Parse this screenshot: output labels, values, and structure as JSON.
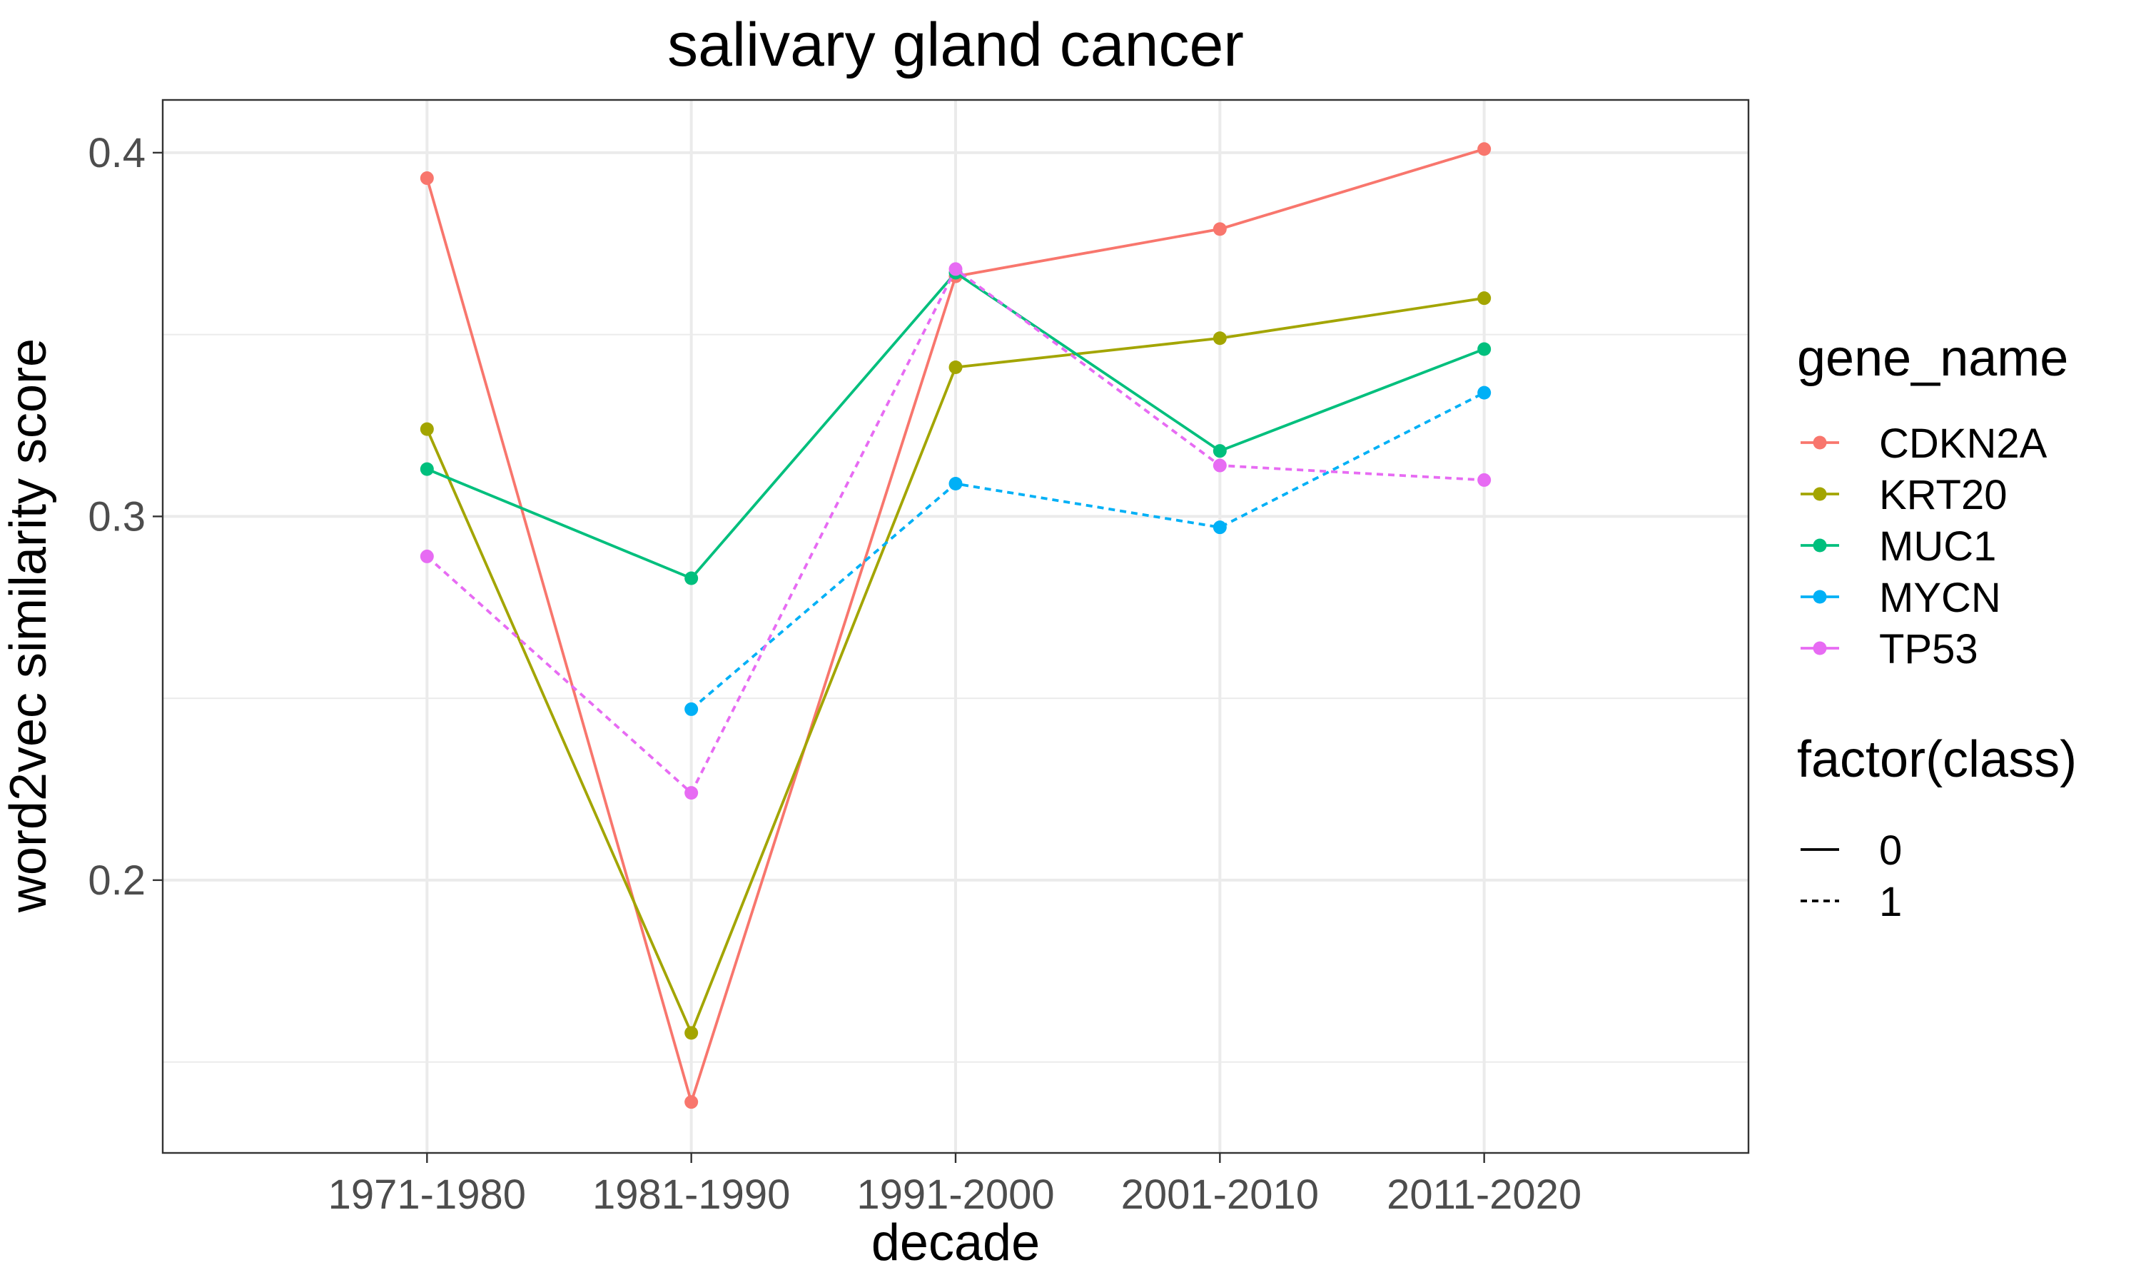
{
  "chart_data": {
    "type": "line",
    "title": "salivary gland cancer",
    "xlabel": "decade",
    "ylabel": "word2vec similarity score",
    "categories": [
      "1971-1980",
      "1981-1990",
      "1991-2000",
      "2001-2010",
      "2011-2020"
    ],
    "ylim": [
      0.125,
      0.4145
    ],
    "yticks": [
      0.2,
      0.3,
      0.4
    ],
    "ytick_labels": [
      "0.2",
      "0.3",
      "0.4"
    ],
    "grid": true,
    "legend_position": "right",
    "legend": {
      "color_title": "gene_name",
      "linetype_title": "factor(class)",
      "linetypes": [
        {
          "label": "0",
          "style": "solid"
        },
        {
          "label": "1",
          "style": "dashed"
        }
      ]
    },
    "series": [
      {
        "name": "CDKN2A",
        "color": "#F8766D",
        "class": "0",
        "values": [
          0.393,
          0.139,
          0.366,
          0.379,
          0.401
        ]
      },
      {
        "name": "KRT20",
        "color": "#A3A500",
        "class": "0",
        "values": [
          0.324,
          0.158,
          0.341,
          0.349,
          0.36
        ]
      },
      {
        "name": "MUC1",
        "color": "#00BF7D",
        "class": "0",
        "values": [
          0.313,
          0.283,
          0.367,
          0.318,
          0.346
        ]
      },
      {
        "name": "MYCN",
        "color": "#00B0F6",
        "class": "1",
        "values": [
          null,
          0.247,
          0.309,
          0.297,
          0.334
        ]
      },
      {
        "name": "TP53",
        "color": "#E76BF3",
        "class": "1",
        "values": [
          0.289,
          0.224,
          0.368,
          0.314,
          0.31
        ]
      }
    ]
  }
}
